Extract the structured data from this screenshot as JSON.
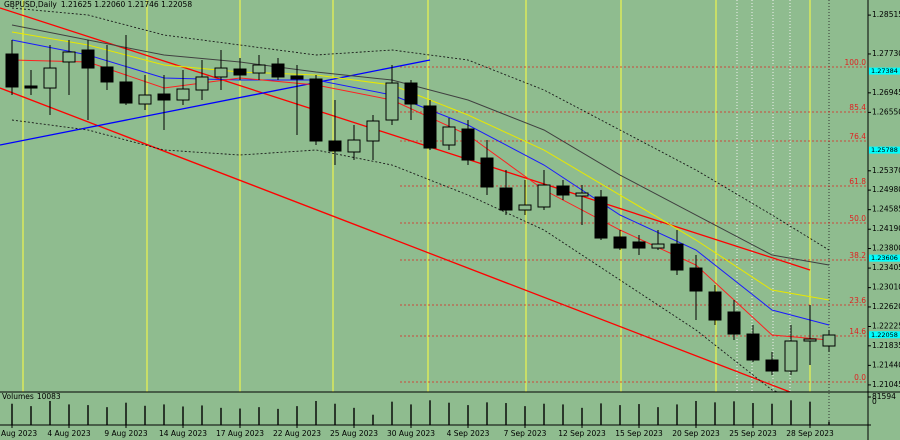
{
  "chart_data": {
    "type": "candlestick",
    "title": "GBPUSD,Daily",
    "header_values": "1.21625 1.22060 1.21746 1.22058",
    "categories": [
      "Aug 2023",
      null,
      null,
      "4 Aug 2023",
      null,
      null,
      "9 Aug 2023",
      null,
      null,
      "14 Aug 2023",
      null,
      null,
      "17 Aug 2023",
      null,
      null,
      "22 Aug 2023",
      null,
      null,
      "25 Aug 2023",
      null,
      null,
      "30 Aug 2023",
      null,
      null,
      "4 Sep 2023",
      null,
      null,
      "7 Sep 2023",
      null,
      null,
      "12 Sep 2023",
      null,
      null,
      "15 Sep 2023",
      null,
      null,
      "20 Sep 2023",
      null,
      null,
      "25 Sep 2023",
      null,
      null,
      "28 Sep 2023",
      null
    ],
    "open": [
      1.27729,
      1.27083,
      1.27042,
      1.27568,
      1.2781,
      1.27467,
      1.27164,
      1.26719,
      1.26921,
      1.268,
      1.27002,
      1.27265,
      1.27426,
      1.27345,
      1.27527,
      1.27285,
      1.27224,
      1.25972,
      1.2575,
      1.25972,
      1.26396,
      1.27143,
      1.26679,
      1.25891,
      1.26214,
      1.25628,
      1.25022,
      1.24578,
      1.24639,
      1.25063,
      1.24861,
      1.24841,
      1.24033,
      1.23932,
      1.2381,
      1.23891,
      1.23406,
      1.22922,
      1.22518,
      1.22073,
      1.21548,
      1.21326,
      1.21932,
      1.21831
    ],
    "high": [
      1.28012,
      1.27406,
      1.27911,
      1.28012,
      1.28012,
      1.27911,
      1.28113,
      1.27305,
      1.27305,
      1.27406,
      1.27608,
      1.2781,
      1.27648,
      1.27709,
      1.27648,
      1.27507,
      1.27305,
      1.268,
      1.26295,
      1.26497,
      1.27507,
      1.27204,
      1.268,
      1.26436,
      1.26396,
      1.25992,
      1.25386,
      1.25184,
      1.25386,
      1.25184,
      1.25083,
      1.24982,
      1.24174,
      1.24073,
      1.24174,
      1.24174,
      1.23669,
      1.23063,
      1.2276,
      1.22255,
      1.2171,
      1.22255,
      1.22659,
      1.22154
    ],
    "low": [
      1.26901,
      1.26901,
      1.26497,
      1.26901,
      1.26396,
      1.27002,
      1.26699,
      1.26598,
      1.26194,
      1.26699,
      1.268,
      1.27002,
      1.27204,
      1.27204,
      1.27204,
      1.26093,
      1.25891,
      1.25487,
      1.25588,
      1.25588,
      1.26295,
      1.26396,
      1.2579,
      1.2579,
      1.25487,
      1.24881,
      1.24477,
      1.24477,
      1.24578,
      1.2478,
      1.24275,
      1.23972,
      1.2377,
      1.23669,
      1.2377,
      1.23265,
      1.22356,
      1.22255,
      1.21952,
      1.21508,
      1.21245,
      1.21245,
      1.21447,
      1.2171
    ],
    "close": [
      1.27063,
      1.27042,
      1.27446,
      1.2777,
      1.27446,
      1.27164,
      1.26739,
      1.26901,
      1.268,
      1.27022,
      1.27265,
      1.27446,
      1.27305,
      1.27507,
      1.27265,
      1.27224,
      1.25972,
      1.2577,
      1.25992,
      1.26376,
      1.27143,
      1.26719,
      1.2583,
      1.26255,
      1.25588,
      1.25043,
      1.24578,
      1.24679,
      1.25083,
      1.24881,
      1.24921,
      1.24012,
      1.2381,
      1.2381,
      1.23891,
      1.23366,
      1.22942,
      1.22356,
      1.22073,
      1.21548,
      1.21326,
      1.21932,
      1.21972,
      1.22053
    ],
    "ylim": [
      1.20902,
      1.2882
    ],
    "yticks": [
      1.28515,
      {
        "value": 1.2773,
        "label": "1.27730"
      },
      1.26945,
      {
        "value": 1.2655,
        "label": "1.26550"
      },
      {
        "value": 1.2537,
        "label": "1.25370"
      },
      {
        "value": 1.2498,
        "label": "1.24980"
      },
      1.24585,
      {
        "value": 1.2419,
        "label": "1.24190"
      },
      {
        "value": 1.238,
        "label": "1.23800"
      },
      1.23405,
      {
        "value": 1.2301,
        "label": "1.23010"
      },
      {
        "value": 1.2262,
        "label": "1.22620"
      },
      1.22225,
      1.21835,
      {
        "value": 1.2144,
        "label": "1.21440"
      },
      1.21045
    ],
    "price_markers": [
      1.27384,
      1.25788,
      1.23606,
      1.22058
    ],
    "marker_color": "#00ffff",
    "fib_levels": {
      "labels": [
        "100.0",
        "85.4",
        "76.4",
        "61.8",
        "50.0",
        "38.2",
        "23.6",
        "14.6",
        "0.0"
      ],
      "prices": [
        1.27467,
        1.26558,
        1.25972,
        1.25063,
        1.24315,
        1.23568,
        1.22659,
        1.22033,
        1.21104
      ],
      "color": "#e02020"
    },
    "indicators": [
      {
        "color": "#404040",
        "dashed": false,
        "x": [
          0,
          4,
          8,
          12,
          16,
          20,
          24,
          28,
          32,
          36,
          40,
          43
        ],
        "values": [
          1.28315,
          1.28012,
          1.27709,
          1.27568,
          1.27366,
          1.27204,
          1.268,
          1.26194,
          1.25285,
          1.24477,
          1.23669,
          1.23467
        ]
      },
      {
        "color": "#e8e800",
        "dashed": false,
        "x": [
          0,
          4,
          8,
          12,
          16,
          20,
          24,
          28,
          32,
          36,
          40,
          43
        ],
        "values": [
          1.28174,
          1.27911,
          1.27507,
          1.27366,
          1.27305,
          1.27103,
          1.26497,
          1.2579,
          1.24881,
          1.23972,
          1.22962,
          1.2276
        ]
      },
      {
        "color": "#1a1aff",
        "dashed": false,
        "x": [
          0,
          4,
          8,
          12,
          16,
          20,
          24,
          28,
          32,
          36,
          40,
          43
        ],
        "values": [
          1.28012,
          1.27709,
          1.27244,
          1.27204,
          1.27204,
          1.26901,
          1.26295,
          1.25487,
          1.24477,
          1.2377,
          1.22558,
          1.22255
        ]
      },
      {
        "color": "#ff2020",
        "dashed": false,
        "x": [
          0,
          4,
          8,
          12,
          16,
          20,
          24,
          28,
          32,
          36,
          40,
          43
        ],
        "values": [
          1.27608,
          1.27568,
          1.27042,
          1.27244,
          1.27103,
          1.268,
          1.26093,
          1.24982,
          1.24174,
          1.23467,
          1.22053,
          1.21952
        ]
      },
      {
        "color": "#1a1a1a",
        "dashed": true,
        "x": [
          0,
          4,
          8,
          12,
          16,
          20,
          24,
          28,
          32,
          36,
          40,
          43
        ],
        "values": [
          1.28658,
          1.28517,
          1.28113,
          1.27911,
          1.27709,
          1.2781,
          1.27608,
          1.27002,
          1.26194,
          1.25386,
          1.24477,
          1.2377
        ]
      },
      {
        "color": "#1a1a1a",
        "dashed": true,
        "x": [
          0,
          4,
          8,
          12,
          16,
          20,
          24,
          28,
          32,
          36,
          40,
          43
        ],
        "values": [
          1.26396,
          1.26194,
          1.2579,
          1.25689,
          1.2579,
          1.25487,
          1.24881,
          1.24174,
          1.23164,
          1.22154,
          1.20942,
          1.20538
        ]
      }
    ],
    "volume": {
      "label": "Volumes",
      "current": 10083,
      "values": [
        62000,
        55000,
        70000,
        60000,
        58000,
        52000,
        65000,
        56000,
        60000,
        54000,
        57000,
        50000,
        48000,
        52000,
        47000,
        55000,
        70000,
        62000,
        50000,
        30000,
        68000,
        60000,
        72000,
        65000,
        58000,
        66000,
        64000,
        55000,
        62000,
        60000,
        50000,
        63000,
        58000,
        61000,
        52000,
        60000,
        70000,
        66000,
        69000,
        64000,
        62000,
        72000,
        68000,
        10083
      ],
      "ylim": [
        0,
        81594
      ],
      "yticks": [
        81594,
        0
      ]
    }
  }
}
